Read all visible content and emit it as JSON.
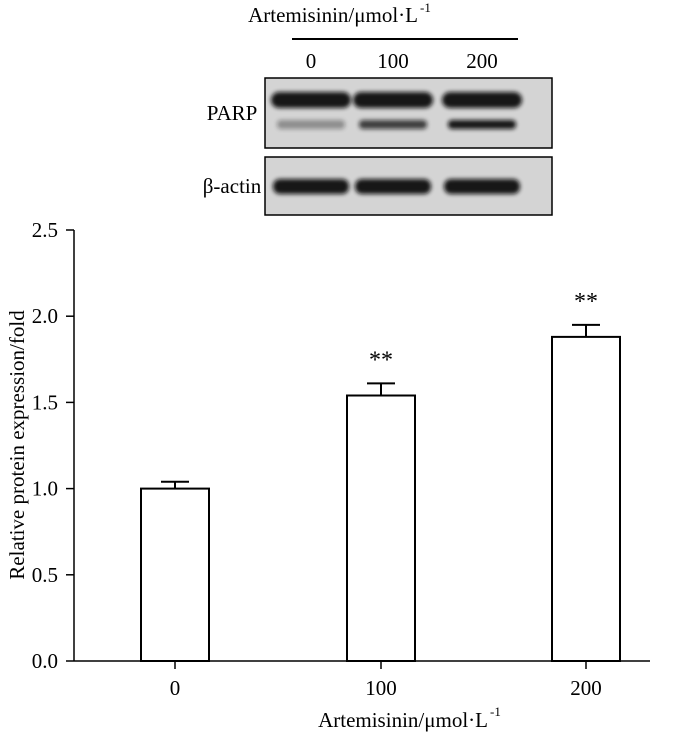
{
  "blot": {
    "treatment_label": "Artemisinin/μmol·L",
    "treatment_label_superscript": "-1",
    "lane_labels": [
      "0",
      "100",
      "200"
    ],
    "rows": [
      {
        "label": "PARP",
        "band_intensity": [
          0.35,
          0.75,
          0.95
        ]
      },
      {
        "label": "β-actin",
        "band_intensity": [
          0.95,
          0.95,
          0.95
        ]
      }
    ]
  },
  "chart_data": {
    "type": "bar",
    "categories": [
      "0",
      "100",
      "200"
    ],
    "values": [
      1.0,
      1.54,
      1.88
    ],
    "error": [
      0.04,
      0.07,
      0.07
    ],
    "annotations": [
      "",
      "**",
      "**"
    ],
    "xlabel": "Artemisinin/μmol·L",
    "xlabel_superscript": "-1",
    "ylabel": "Relative protein expression/fold",
    "ylim": [
      0,
      2.5
    ],
    "yticks": [
      "0.0",
      "0.5",
      "1.0",
      "1.5",
      "2.0",
      "2.5"
    ],
    "grid": false,
    "bar_fill": "#ffffff",
    "bar_stroke": "#000000"
  },
  "colors": {
    "blot_background": "#d4d4d4",
    "band": "#111111"
  }
}
